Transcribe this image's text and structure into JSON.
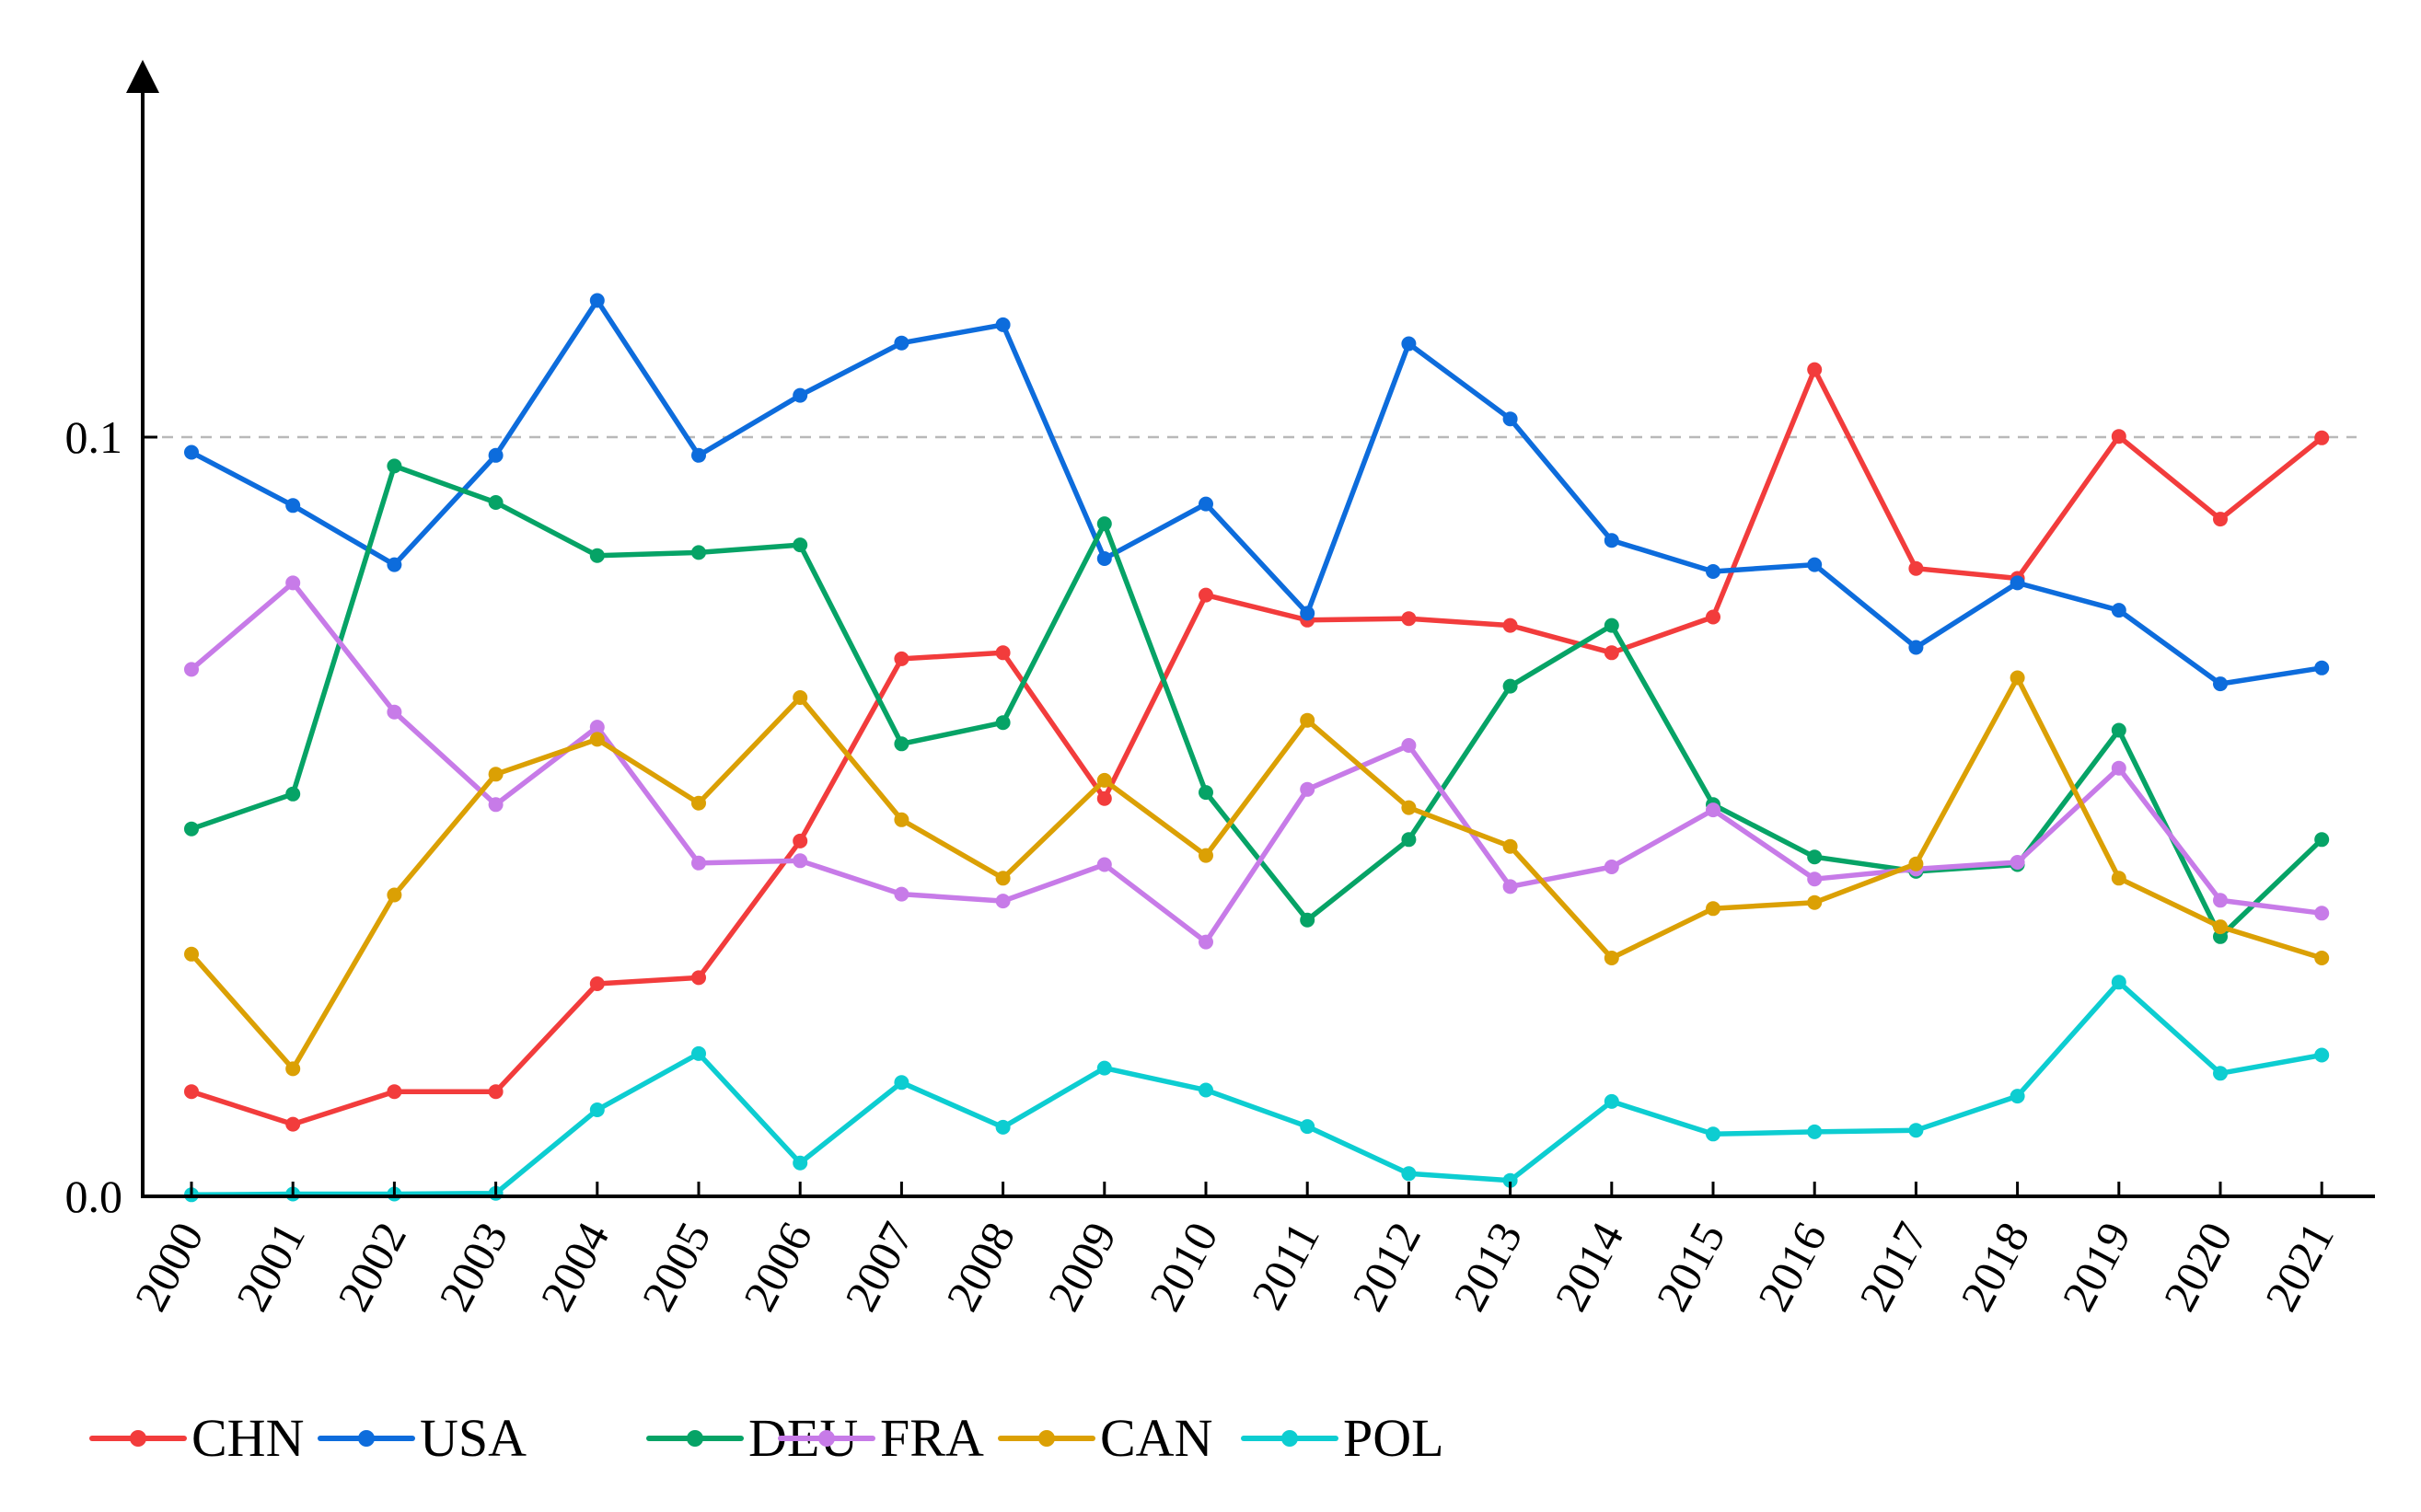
{
  "chart_data": {
    "type": "line",
    "title": "",
    "xlabel": "",
    "ylabel": "",
    "x": [
      "2000",
      "2001",
      "2002",
      "2003",
      "2004",
      "2005",
      "2006",
      "2007",
      "2008",
      "2009",
      "2010",
      "2011",
      "2012",
      "2013",
      "2014",
      "2015",
      "2016",
      "2017",
      "2018",
      "2019",
      "2020",
      "2021"
    ],
    "yticks": [
      {
        "value": 0.0,
        "label": "0.0"
      },
      {
        "value": 0.1,
        "label": "0.1"
      }
    ],
    "ylim": [
      0,
      0.143
    ],
    "reference_line": 0.1,
    "grid": false,
    "legend_position": "bottom-left",
    "series": [
      {
        "name": "CHN",
        "color": "#f23c3c",
        "values": [
          0.0138,
          0.0095,
          0.0138,
          0.0138,
          0.028,
          0.0288,
          0.0468,
          0.0708,
          0.0716,
          0.0524,
          0.0792,
          0.0759,
          0.0761,
          0.0752,
          0.0716,
          0.0763,
          0.1089,
          0.0827,
          0.0814,
          0.1001,
          0.0892,
          0.0999
        ]
      },
      {
        "name": "USA",
        "color": "#0d6cdc",
        "values": [
          0.098,
          0.091,
          0.0832,
          0.0976,
          0.118,
          0.0976,
          0.1055,
          0.1124,
          0.1148,
          0.084,
          0.0912,
          0.0768,
          0.1123,
          0.1024,
          0.0864,
          0.0823,
          0.0832,
          0.0723,
          0.0808,
          0.0772,
          0.0675,
          0.0696
        ]
      },
      {
        "name": "DEU",
        "color": "#06a366",
        "values": [
          0.0484,
          0.053,
          0.0962,
          0.0914,
          0.0844,
          0.0848,
          0.0858,
          0.0596,
          0.0624,
          0.0886,
          0.0532,
          0.0364,
          0.047,
          0.0672,
          0.0752,
          0.0516,
          0.0447,
          0.0428,
          0.0437,
          0.0614,
          0.0342,
          0.047
        ]
      },
      {
        "name": "FRA",
        "color": "#c77be8",
        "values": [
          0.0694,
          0.0808,
          0.0638,
          0.0516,
          0.0618,
          0.0439,
          0.0442,
          0.0398,
          0.0389,
          0.0437,
          0.0335,
          0.0536,
          0.0594,
          0.0408,
          0.0434,
          0.0509,
          0.0418,
          0.0431,
          0.044,
          0.0564,
          0.039,
          0.0373
        ]
      },
      {
        "name": "CAN",
        "color": "#dba004",
        "values": [
          0.0319,
          0.0168,
          0.0397,
          0.0556,
          0.0602,
          0.0518,
          0.0657,
          0.0496,
          0.0419,
          0.0548,
          0.0449,
          0.0627,
          0.0512,
          0.0461,
          0.0314,
          0.0379,
          0.0387,
          0.0438,
          0.0683,
          0.0419,
          0.0355,
          0.0314
        ]
      },
      {
        "name": "POL",
        "color": "#0dcdd1",
        "values": [
          0.0002,
          0.0003,
          0.0003,
          0.0004,
          0.0114,
          0.0188,
          0.0044,
          0.015,
          0.0091,
          0.0169,
          0.014,
          0.0092,
          0.003,
          0.0021,
          0.0125,
          0.0082,
          0.0085,
          0.0087,
          0.0132,
          0.0282,
          0.0162,
          0.0186
        ]
      }
    ]
  }
}
